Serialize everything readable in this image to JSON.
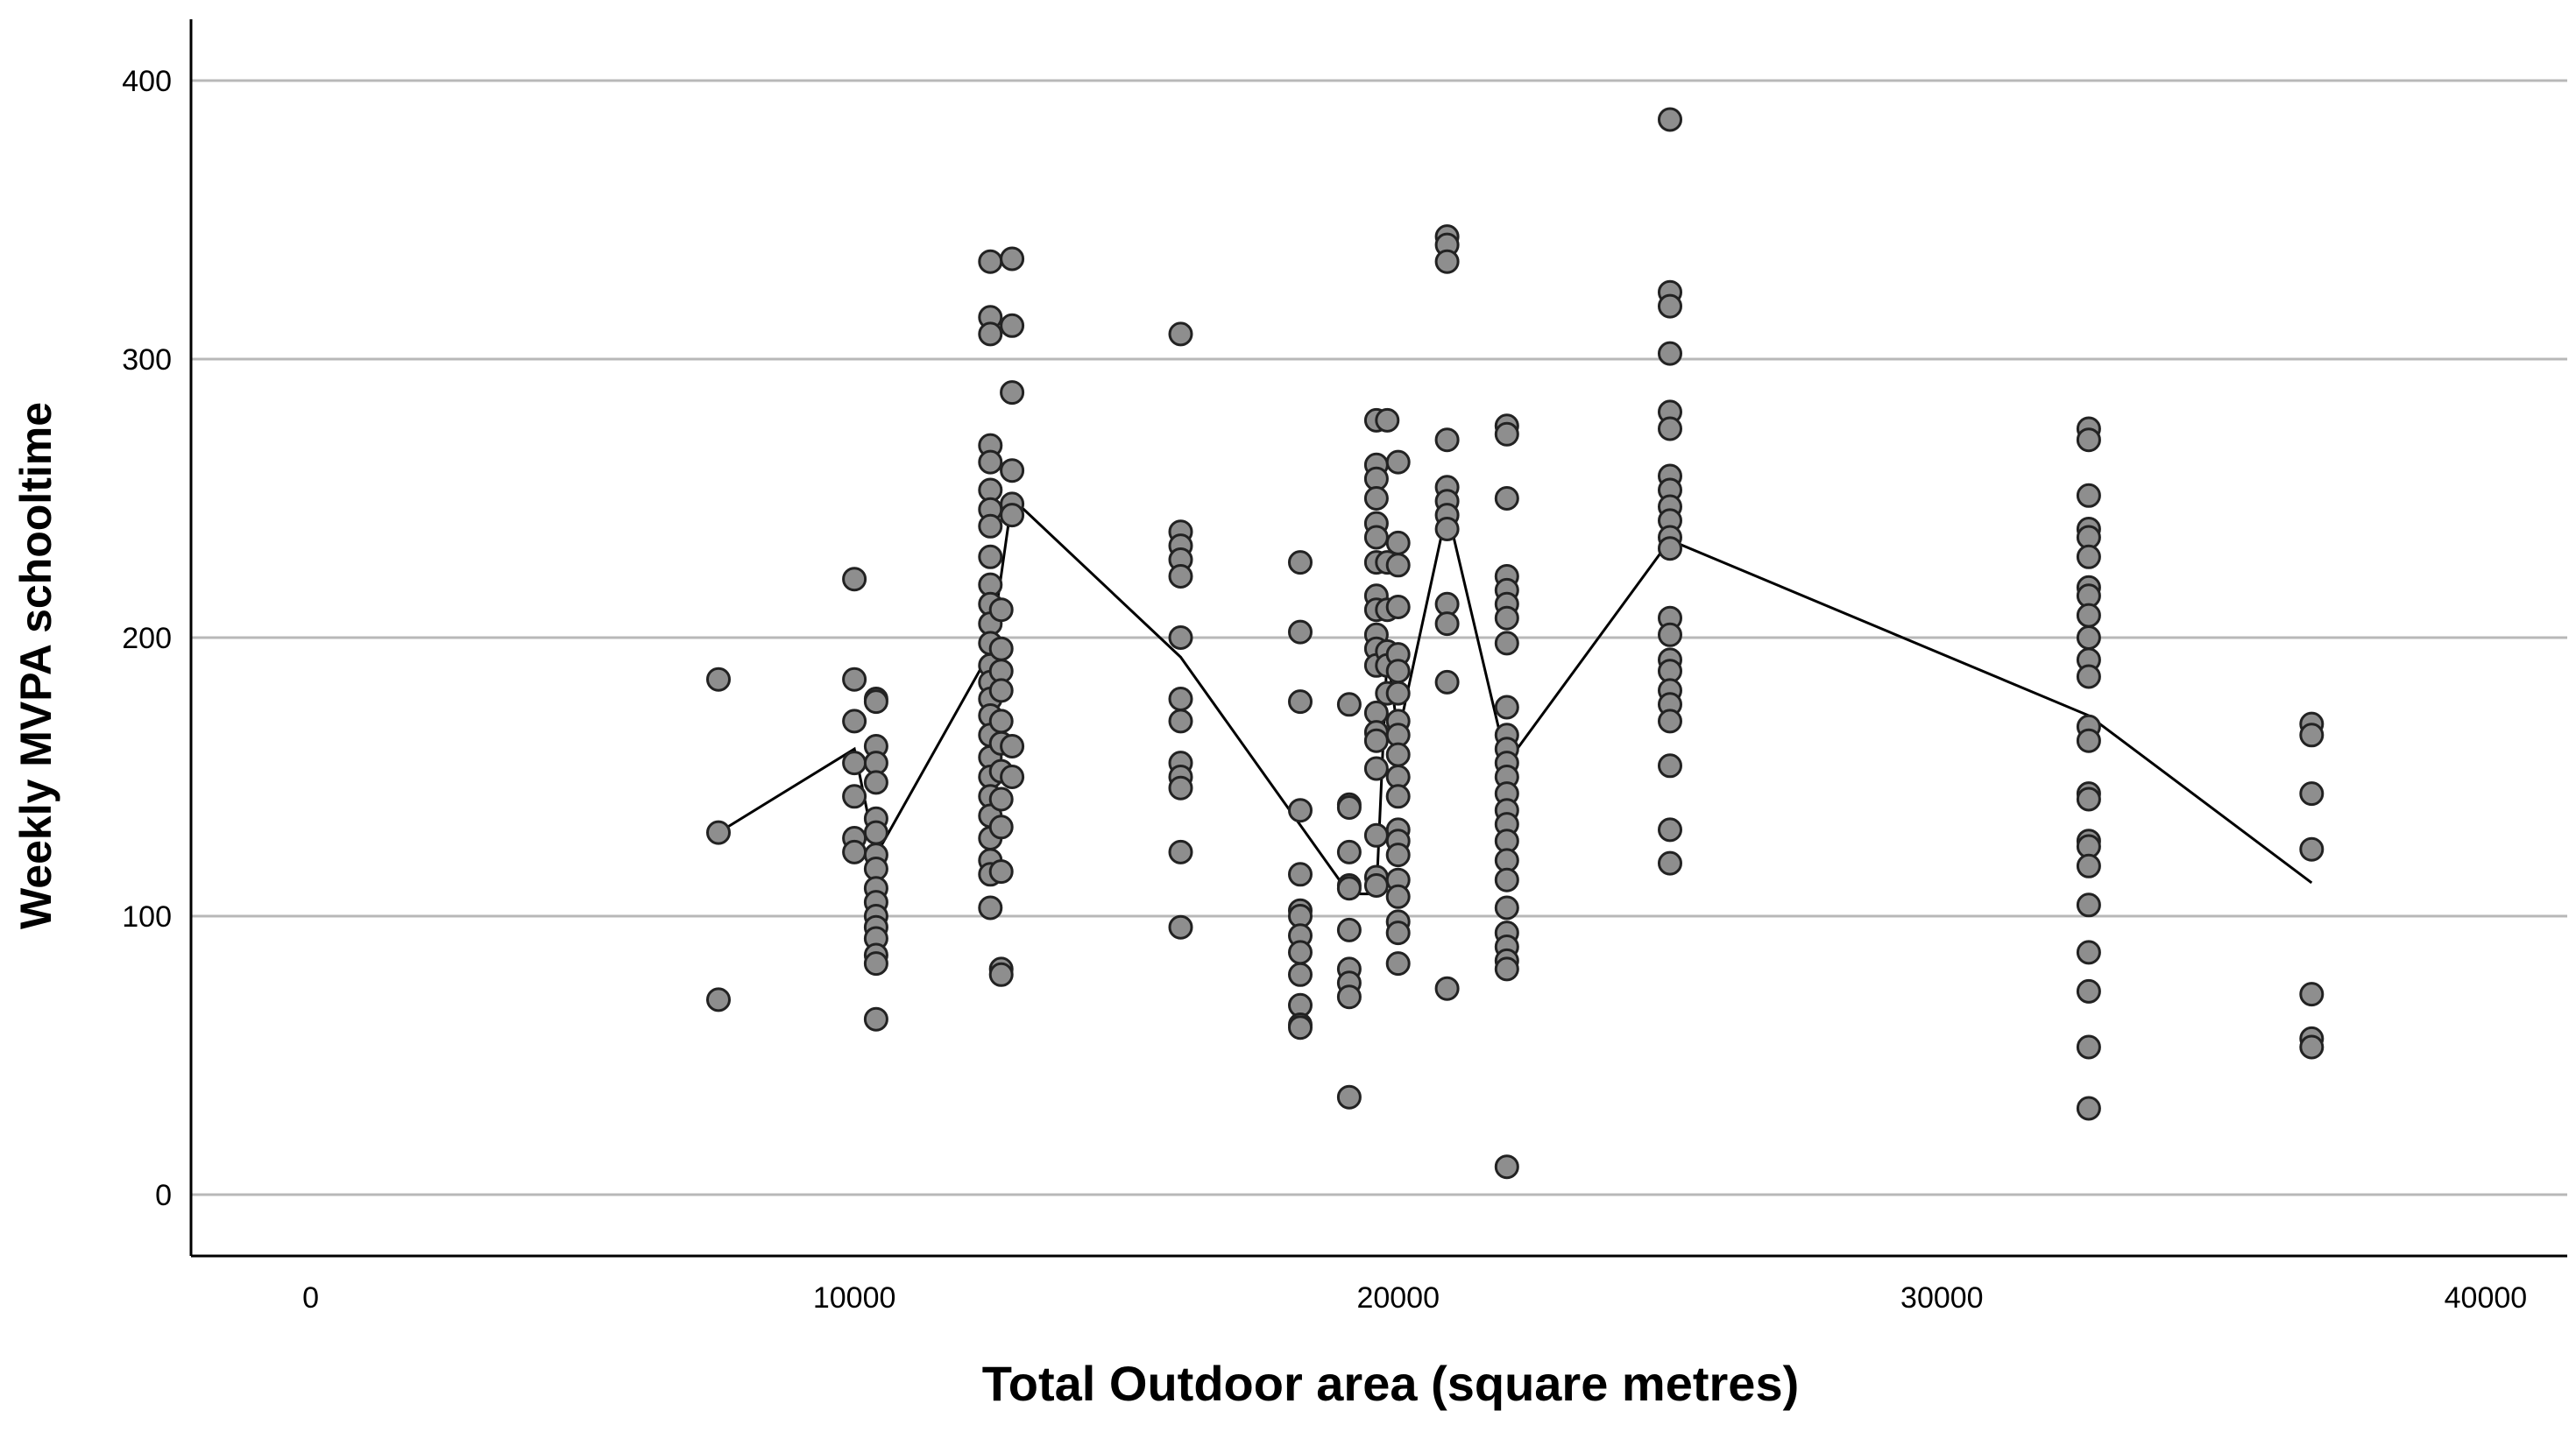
{
  "chart_data": {
    "type": "scatter",
    "title": "",
    "xlabel": "Total Outdoor area (square metres)",
    "ylabel": "Weekly MVPA schooltime",
    "xlim": [
      -2200,
      41500
    ],
    "ylim": [
      -22,
      422
    ],
    "x_ticks": [
      0,
      10000,
      20000,
      30000,
      40000
    ],
    "y_ticks": [
      0,
      100,
      200,
      300,
      400
    ],
    "grid": "horizontal",
    "legend": "none",
    "colors": {
      "point_fill": "#8e8e8e",
      "point_stroke": "#222222",
      "line": "#000000",
      "grid": "#b8b8b8",
      "axis": "#000000"
    },
    "series": [
      {
        "type": "scatter",
        "points": [
          [
            7500,
            185
          ],
          [
            7500,
            130
          ],
          [
            7500,
            70
          ],
          [
            10000,
            221
          ],
          [
            10000,
            185
          ],
          [
            10000,
            170
          ],
          [
            10000,
            155
          ],
          [
            10000,
            143
          ],
          [
            10000,
            128
          ],
          [
            10000,
            123
          ],
          [
            10400,
            178
          ],
          [
            10400,
            177
          ],
          [
            10400,
            161
          ],
          [
            10400,
            155
          ],
          [
            10400,
            148
          ],
          [
            10400,
            135
          ],
          [
            10400,
            130
          ],
          [
            10400,
            122
          ],
          [
            10400,
            117
          ],
          [
            10400,
            110
          ],
          [
            10400,
            105
          ],
          [
            10400,
            100
          ],
          [
            10400,
            96
          ],
          [
            10400,
            92
          ],
          [
            10400,
            86
          ],
          [
            10400,
            83
          ],
          [
            10400,
            63
          ],
          [
            12500,
            335
          ],
          [
            12500,
            315
          ],
          [
            12500,
            309
          ],
          [
            12500,
            269
          ],
          [
            12500,
            263
          ],
          [
            12500,
            253
          ],
          [
            12500,
            246
          ],
          [
            12500,
            240
          ],
          [
            12500,
            229
          ],
          [
            12500,
            219
          ],
          [
            12500,
            212
          ],
          [
            12500,
            205
          ],
          [
            12500,
            198
          ],
          [
            12500,
            190
          ],
          [
            12500,
            184
          ],
          [
            12500,
            178
          ],
          [
            12500,
            172
          ],
          [
            12500,
            165
          ],
          [
            12500,
            157
          ],
          [
            12500,
            150
          ],
          [
            12500,
            143
          ],
          [
            12500,
            136
          ],
          [
            12500,
            128
          ],
          [
            12500,
            120
          ],
          [
            12500,
            115
          ],
          [
            12500,
            103
          ],
          [
            12700,
            210
          ],
          [
            12700,
            196
          ],
          [
            12700,
            188
          ],
          [
            12700,
            181
          ],
          [
            12700,
            170
          ],
          [
            12700,
            162
          ],
          [
            12700,
            152
          ],
          [
            12700,
            142
          ],
          [
            12700,
            132
          ],
          [
            12700,
            116
          ],
          [
            12700,
            81
          ],
          [
            12700,
            79
          ],
          [
            12900,
            336
          ],
          [
            12900,
            312
          ],
          [
            12900,
            288
          ],
          [
            12900,
            260
          ],
          [
            12900,
            248
          ],
          [
            12900,
            244
          ],
          [
            12900,
            161
          ],
          [
            12900,
            150
          ],
          [
            16000,
            309
          ],
          [
            16000,
            238
          ],
          [
            16000,
            233
          ],
          [
            16000,
            228
          ],
          [
            16000,
            222
          ],
          [
            16000,
            200
          ],
          [
            16000,
            178
          ],
          [
            16000,
            170
          ],
          [
            16000,
            155
          ],
          [
            16000,
            150
          ],
          [
            16000,
            146
          ],
          [
            16000,
            123
          ],
          [
            16000,
            96
          ],
          [
            18200,
            227
          ],
          [
            18200,
            202
          ],
          [
            18200,
            177
          ],
          [
            18200,
            138
          ],
          [
            18200,
            115
          ],
          [
            18200,
            102
          ],
          [
            18200,
            100
          ],
          [
            18200,
            93
          ],
          [
            18200,
            87
          ],
          [
            18200,
            79
          ],
          [
            18200,
            68
          ],
          [
            18200,
            61
          ],
          [
            18200,
            60
          ],
          [
            19100,
            176
          ],
          [
            19100,
            140
          ],
          [
            19100,
            139
          ],
          [
            19100,
            123
          ],
          [
            19100,
            111
          ],
          [
            19100,
            110
          ],
          [
            19100,
            95
          ],
          [
            19100,
            81
          ],
          [
            19100,
            76
          ],
          [
            19100,
            71
          ],
          [
            19100,
            35
          ],
          [
            19600,
            278
          ],
          [
            19600,
            262
          ],
          [
            19600,
            257
          ],
          [
            19600,
            250
          ],
          [
            19600,
            241
          ],
          [
            19600,
            236
          ],
          [
            19600,
            227
          ],
          [
            19600,
            215
          ],
          [
            19600,
            210
          ],
          [
            19600,
            201
          ],
          [
            19600,
            196
          ],
          [
            19600,
            190
          ],
          [
            19600,
            173
          ],
          [
            19600,
            166
          ],
          [
            19600,
            163
          ],
          [
            19600,
            153
          ],
          [
            19600,
            129
          ],
          [
            19600,
            114
          ],
          [
            19600,
            111
          ],
          [
            19800,
            278
          ],
          [
            19800,
            227
          ],
          [
            19800,
            210
          ],
          [
            19800,
            195
          ],
          [
            19800,
            190
          ],
          [
            19800,
            180
          ],
          [
            20000,
            263
          ],
          [
            20000,
            234
          ],
          [
            20000,
            226
          ],
          [
            20000,
            211
          ],
          [
            20000,
            194
          ],
          [
            20000,
            188
          ],
          [
            20000,
            180
          ],
          [
            20000,
            170
          ],
          [
            20000,
            165
          ],
          [
            20000,
            158
          ],
          [
            20000,
            150
          ],
          [
            20000,
            143
          ],
          [
            20000,
            131
          ],
          [
            20000,
            127
          ],
          [
            20000,
            122
          ],
          [
            20000,
            113
          ],
          [
            20000,
            107
          ],
          [
            20000,
            98
          ],
          [
            20000,
            94
          ],
          [
            20000,
            83
          ],
          [
            20900,
            344
          ],
          [
            20900,
            341
          ],
          [
            20900,
            335
          ],
          [
            20900,
            271
          ],
          [
            20900,
            254
          ],
          [
            20900,
            249
          ],
          [
            20900,
            244
          ],
          [
            20900,
            239
          ],
          [
            20900,
            212
          ],
          [
            20900,
            205
          ],
          [
            20900,
            184
          ],
          [
            20900,
            74
          ],
          [
            22000,
            276
          ],
          [
            22000,
            273
          ],
          [
            22000,
            250
          ],
          [
            22000,
            222
          ],
          [
            22000,
            217
          ],
          [
            22000,
            212
          ],
          [
            22000,
            207
          ],
          [
            22000,
            198
          ],
          [
            22000,
            175
          ],
          [
            22000,
            165
          ],
          [
            22000,
            160
          ],
          [
            22000,
            155
          ],
          [
            22000,
            150
          ],
          [
            22000,
            144
          ],
          [
            22000,
            138
          ],
          [
            22000,
            133
          ],
          [
            22000,
            127
          ],
          [
            22000,
            120
          ],
          [
            22000,
            113
          ],
          [
            22000,
            103
          ],
          [
            22000,
            94
          ],
          [
            22000,
            89
          ],
          [
            22000,
            84
          ],
          [
            22000,
            81
          ],
          [
            22000,
            10
          ],
          [
            25000,
            386
          ],
          [
            25000,
            324
          ],
          [
            25000,
            319
          ],
          [
            25000,
            302
          ],
          [
            25000,
            281
          ],
          [
            25000,
            275
          ],
          [
            25000,
            258
          ],
          [
            25000,
            253
          ],
          [
            25000,
            247
          ],
          [
            25000,
            242
          ],
          [
            25000,
            236
          ],
          [
            25000,
            232
          ],
          [
            25000,
            207
          ],
          [
            25000,
            201
          ],
          [
            25000,
            192
          ],
          [
            25000,
            188
          ],
          [
            25000,
            181
          ],
          [
            25000,
            176
          ],
          [
            25000,
            170
          ],
          [
            25000,
            154
          ],
          [
            25000,
            131
          ],
          [
            25000,
            119
          ],
          [
            32700,
            275
          ],
          [
            32700,
            271
          ],
          [
            32700,
            251
          ],
          [
            32700,
            239
          ],
          [
            32700,
            236
          ],
          [
            32700,
            229
          ],
          [
            32700,
            218
          ],
          [
            32700,
            215
          ],
          [
            32700,
            208
          ],
          [
            32700,
            200
          ],
          [
            32700,
            192
          ],
          [
            32700,
            186
          ],
          [
            32700,
            168
          ],
          [
            32700,
            163
          ],
          [
            32700,
            144
          ],
          [
            32700,
            142
          ],
          [
            32700,
            127
          ],
          [
            32700,
            125
          ],
          [
            32700,
            118
          ],
          [
            32700,
            104
          ],
          [
            32700,
            87
          ],
          [
            32700,
            73
          ],
          [
            32700,
            53
          ],
          [
            32700,
            31
          ],
          [
            36800,
            169
          ],
          [
            36800,
            165
          ],
          [
            36800,
            144
          ],
          [
            36800,
            124
          ],
          [
            36800,
            72
          ],
          [
            36800,
            56
          ],
          [
            36800,
            53
          ]
        ]
      },
      {
        "type": "line",
        "points": [
          [
            7500,
            130
          ],
          [
            10000,
            160
          ],
          [
            10400,
            122
          ],
          [
            12500,
            195
          ],
          [
            12900,
            250
          ],
          [
            16000,
            193
          ],
          [
            19100,
            108
          ],
          [
            19600,
            108
          ],
          [
            19800,
            195
          ],
          [
            20000,
            165
          ],
          [
            20900,
            246
          ],
          [
            22000,
            155
          ],
          [
            25000,
            235
          ],
          [
            32700,
            172
          ],
          [
            36800,
            112
          ]
        ]
      }
    ]
  }
}
